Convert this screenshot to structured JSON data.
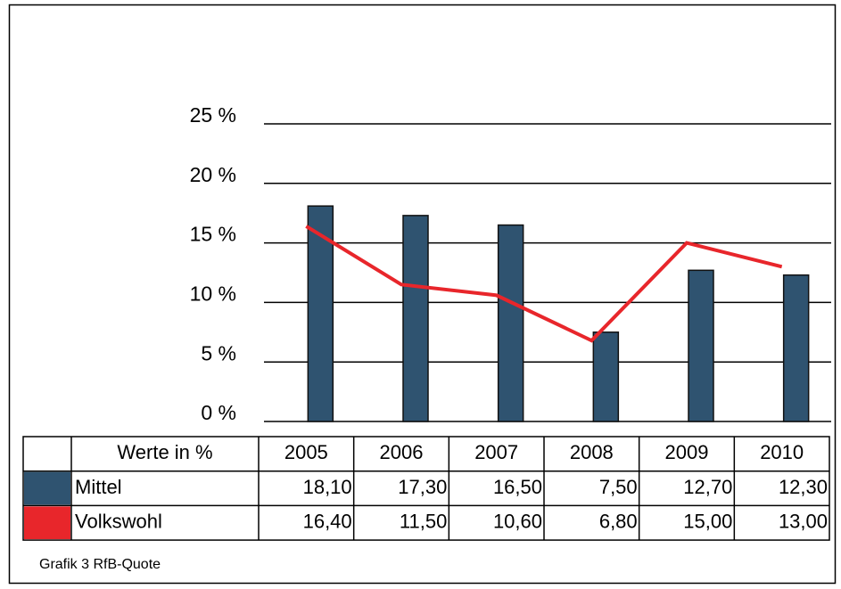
{
  "chart_data": {
    "type": "bar-line",
    "categories": [
      "2005",
      "2006",
      "2007",
      "2008",
      "2009",
      "2010"
    ],
    "series": [
      {
        "name": "Mittel",
        "type": "bar",
        "color": "#2f5370",
        "values": [
          18.1,
          17.3,
          16.5,
          7.5,
          12.7,
          12.3
        ],
        "value_labels": [
          "18,10",
          "17,30",
          "16,50",
          "7,50",
          "12,70",
          "12,30"
        ]
      },
      {
        "name": "Volkswohl",
        "type": "line",
        "color": "#e8262b",
        "values": [
          16.4,
          11.5,
          10.6,
          6.8,
          15.0,
          13.0
        ],
        "value_labels": [
          "16,40",
          "11,50",
          "10,60",
          "6,80",
          "15,00",
          "13,00"
        ]
      }
    ],
    "ylim": [
      0,
      25
    ],
    "yticks": [
      {
        "value": 0,
        "label": "0 %"
      },
      {
        "value": 5,
        "label": "5 %"
      },
      {
        "value": 10,
        "label": "10 %"
      },
      {
        "value": 15,
        "label": "15 %"
      },
      {
        "value": 20,
        "label": "20 %"
      },
      {
        "value": 25,
        "label": "25 %"
      }
    ],
    "grid": true,
    "table_header": "Werte in %",
    "caption": "Grafik 3 RfB-Quote"
  }
}
